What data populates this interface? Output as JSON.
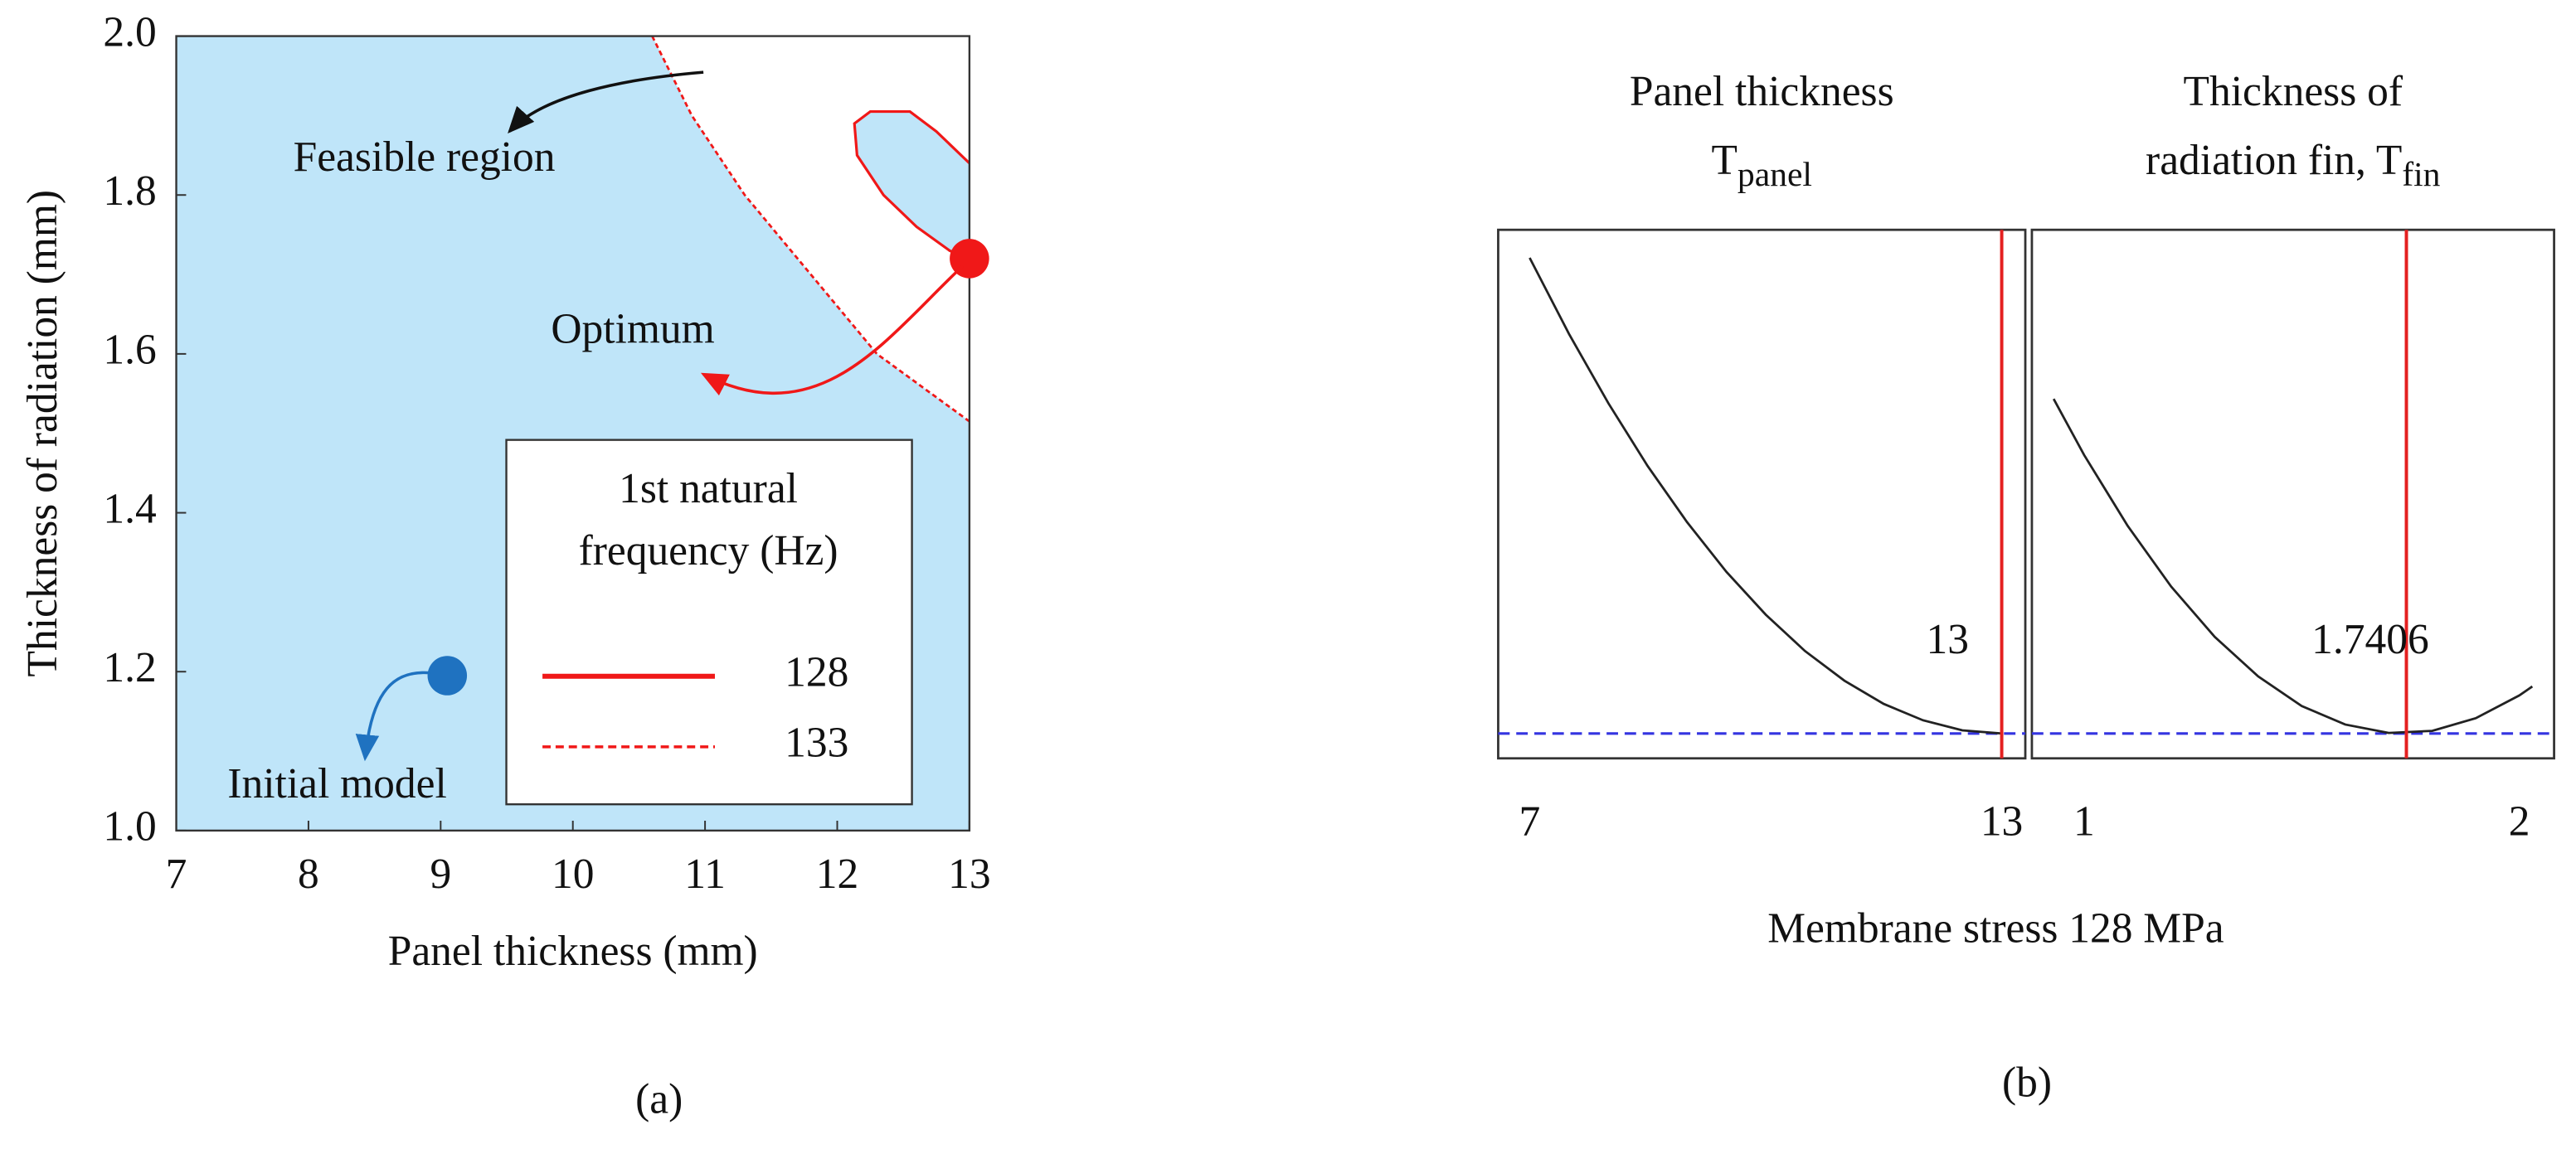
{
  "chart_data": [
    {
      "type": "contour",
      "xlabel": "Panel thickness (mm)",
      "ylabel": "Thickness of radiation (mm)",
      "panel_label": "(a)",
      "xlim": [
        7,
        13
      ],
      "ylim": [
        1,
        2
      ],
      "xticks": [
        7,
        8,
        9,
        10,
        11,
        12,
        13
      ],
      "yticks": [
        {
          "value": 1,
          "label": "1.0"
        },
        1.2,
        1.4,
        1.6,
        1.8,
        {
          "value": 2,
          "label": "2.0"
        }
      ],
      "fill_color": "#bfe5f9",
      "legend_title": [
        "1st natural",
        "frequency (Hz)"
      ],
      "annotations": [
        "Feasible region"
      ],
      "series": [
        {
          "name": "128",
          "color": "#f01818",
          "dash": false,
          "x": [
            13,
            12.75,
            12.55,
            12.25,
            12.13,
            12.15,
            12.35,
            12.6,
            12.85,
            13
          ],
          "y": [
            1.84,
            1.88,
            1.905,
            1.905,
            1.89,
            1.85,
            1.8,
            1.76,
            1.73,
            1.72
          ]
        },
        {
          "name": "133",
          "color": "#f01818",
          "dash": true,
          "x": [
            10.6,
            10.9,
            11.3,
            11.8,
            12.3,
            13
          ],
          "y": [
            2.0,
            1.9,
            1.8,
            1.7,
            1.6,
            1.515
          ]
        }
      ],
      "points": [
        {
          "label": "Initial model",
          "x": 9.05,
          "y": 1.195,
          "color": "#1f72c0"
        },
        {
          "label": "Optimum",
          "x": 13,
          "y": 1.72,
          "color": "#f01818"
        }
      ]
    },
    {
      "type": "profile",
      "xlabel": "Membrane stress 128 MPa",
      "panel_label": "(b)",
      "ylim": [
        0,
        1
      ],
      "hline": 0.047,
      "hline_color": "#3434e0",
      "current_color": "#e42020",
      "line_color": "#222222",
      "panels": [
        {
          "title_lines": [
            "Panel thickness",
            "T"
          ],
          "subscript": "panel",
          "xlim": [
            6.6,
            13.3
          ],
          "xticks": [
            7,
            13
          ],
          "current": 13,
          "x": [
            7,
            7.5,
            8,
            8.5,
            9,
            9.5,
            10,
            10.5,
            11,
            11.5,
            12,
            12.5,
            13
          ],
          "values": [
            0.947,
            0.803,
            0.672,
            0.553,
            0.447,
            0.353,
            0.272,
            0.203,
            0.147,
            0.103,
            0.072,
            0.053,
            0.047
          ]
        },
        {
          "title_lines": [
            "Thickness of",
            "radiation fin, T"
          ],
          "subscript": "fin",
          "xlim": [
            0.88,
            2.08
          ],
          "xticks": [
            1,
            2
          ],
          "current": 1.7406,
          "x": [
            0.93,
            1.0,
            1.1,
            1.2,
            1.3,
            1.4,
            1.5,
            1.6,
            1.7,
            1.8,
            1.9,
            2.0,
            2.03
          ],
          "values": [
            0.68,
            0.574,
            0.44,
            0.325,
            0.23,
            0.155,
            0.099,
            0.064,
            0.048,
            0.052,
            0.076,
            0.119,
            0.136
          ]
        }
      ]
    }
  ]
}
